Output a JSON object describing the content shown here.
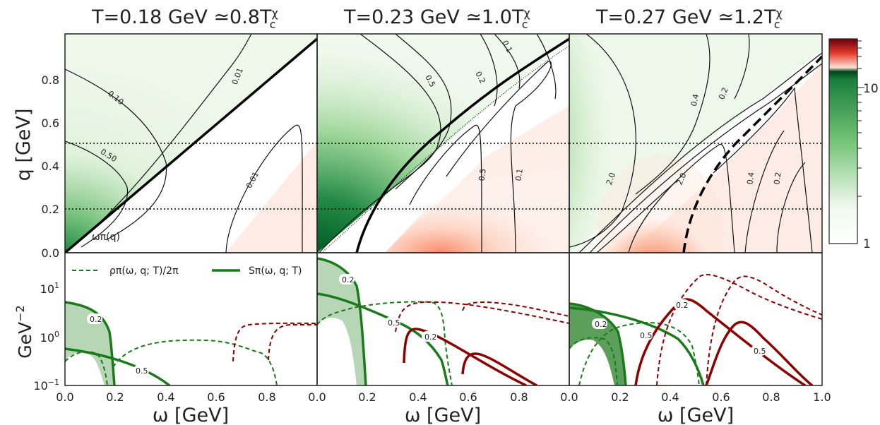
{
  "chart_data": {
    "type": "heatmap",
    "panel_titles": [
      [
        "T=0.18 GeV",
        " ≃0.8T",
        "χ",
        "c"
      ],
      [
        "T=0.23 GeV",
        " ≃1.0T",
        "χ",
        "c"
      ],
      [
        "T=0.27 GeV",
        " ≃1.2T",
        "χ",
        "c"
      ]
    ],
    "top_row": {
      "xlim": [
        0,
        1.0
      ],
      "ylim": [
        0,
        1.0
      ],
      "ylabel": "q [GeV]",
      "y_ticks": [
        "0.0",
        "0.2",
        "0.4",
        "0.6",
        "0.8"
      ],
      "dotted_q_levels": [
        0.2,
        0.5
      ],
      "pion_dispersion_label": "ωπ(q)",
      "colorbar": {
        "scale": "log",
        "min": 1,
        "max": 20,
        "tick_labels": [
          "1",
          "10"
        ],
        "negative_colormap": "Greens",
        "positive_colormap": "Reds"
      },
      "contour_labels": [
        [
          "0.10",
          "0.50",
          "0.01",
          "0.01"
        ],
        [
          "0.1",
          "0.2",
          "0.5",
          "0.5",
          "0.1"
        ],
        [
          "0.4",
          "0.2",
          "2.0",
          "2.0",
          "0.4",
          "0.2"
        ]
      ]
    },
    "bottom_row": {
      "xlim": [
        0,
        1.0
      ],
      "ylim": [
        0.1,
        30
      ],
      "yscale": "log",
      "ylabel": "GeV",
      "ylabel_exp": "−2",
      "y_ticks": [
        [
          "10",
          "1"
        ],
        [
          "10",
          "0"
        ],
        [
          "10",
          "−1"
        ]
      ],
      "x_ticks": [
        [
          "0.0",
          "0.2",
          "0.4",
          "0.6",
          "0.8"
        ],
        [
          "0.0",
          "0.2",
          "0.4",
          "0.6",
          "0.8"
        ],
        [
          "0.0",
          "0.2",
          "0.4",
          "0.6",
          "0.8",
          "1.0"
        ]
      ],
      "xlabel": "ω [GeV]",
      "legend": {
        "placement": "top",
        "rho_label": "ρπ(ω, q; T)/2π",
        "s_label": "Sπ(ω, q; T)"
      },
      "q_labels": [
        [
          "0.2",
          "0.5"
        ],
        [
          "0.2",
          "0.5",
          "0.2"
        ],
        [
          "0.2",
          "0.5",
          "0.2",
          "0.5"
        ]
      ]
    },
    "colors": {
      "green": "#1a7a1a",
      "darkred": "#8b0000",
      "green_fill": "#aacfa8"
    }
  }
}
